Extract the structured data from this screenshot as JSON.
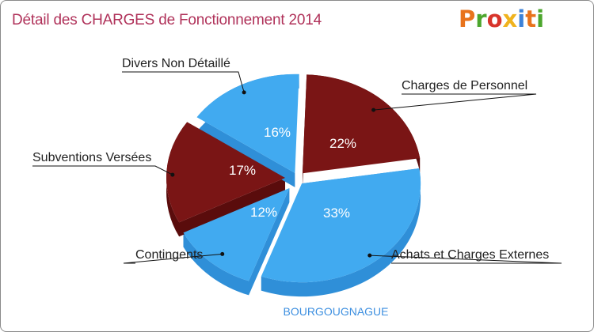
{
  "title": "Détail des CHARGES de Fonctionnement 2014",
  "logo": {
    "text": "Proxiti",
    "letters": [
      "P",
      "r",
      "o",
      "x",
      "i",
      "t",
      "i"
    ]
  },
  "colors": {
    "blue": "#41aaf0",
    "blue_dark": "#2f8fd8",
    "maroon": "#7a1515",
    "maroon_dark": "#5a0c0c",
    "title": "#b0325a"
  },
  "chart_data": {
    "type": "pie",
    "title": "Détail des CHARGES de Fonctionnement 2014",
    "subtitle": "BOURGOUGNAGUE",
    "slices": [
      {
        "label": "Charges de Personnel",
        "value": 22,
        "pct_label": "22%",
        "color": "maroon"
      },
      {
        "label": "Achats et Charges Externes",
        "value": 33,
        "pct_label": "33%",
        "color": "blue"
      },
      {
        "label": "Contingents",
        "value": 12,
        "pct_label": "12%",
        "color": "blue"
      },
      {
        "label": "Subventions Versées",
        "value": 17,
        "pct_label": "17%",
        "color": "maroon"
      },
      {
        "label": "Divers Non Détaillé",
        "value": 16,
        "pct_label": "16%",
        "color": "blue"
      }
    ]
  }
}
